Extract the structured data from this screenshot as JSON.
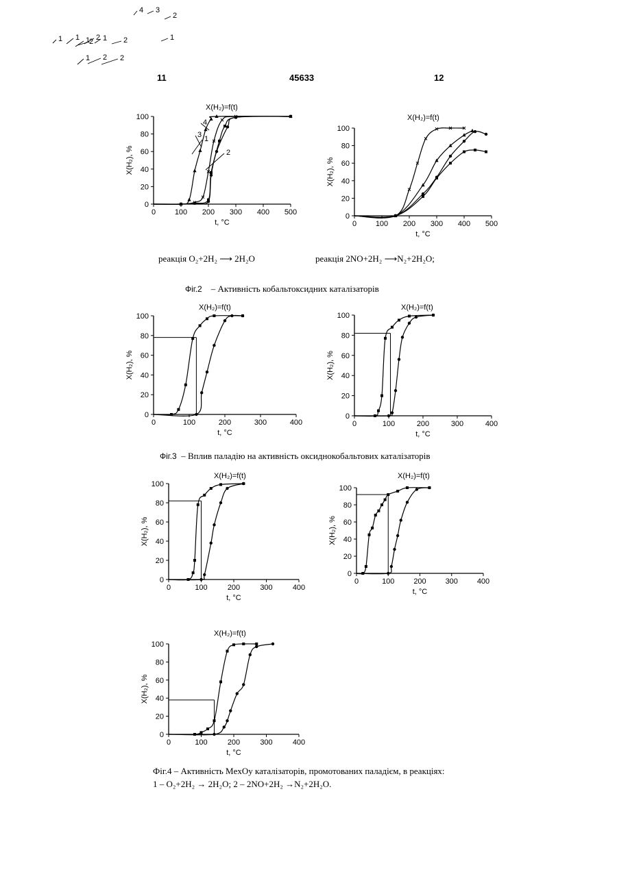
{
  "header": {
    "left": "11",
    "center": "45633",
    "right": "12"
  },
  "captions": {
    "fig2_reaction_left": "реакція O₂+2H₂ ⟶ 2H₂O",
    "fig2_reaction_right": "реакція 2NO+2H₂ ⟶N₂+2H₂O;",
    "fig2_label": "Фіг.2",
    "fig2_text": "– Активність кобальтоксидних каталізаторів",
    "fig3_label": "Фіг.3",
    "fig3_text": "– Вплив паладію на активність оксиднокобальтових каталізаторів",
    "fig4_line1": "Фіг.4 – Активність MeхOy каталізаторів, промотованих паладієм, в реакціях:",
    "fig4_line2": "1 – O₂+2H₂ → 2H₂O; 2 – 2NO+2H₂ →N₂+2H₂O."
  },
  "chart_data": [
    {
      "id": "c2a",
      "type": "line",
      "title": "X(H₂)=f(t)",
      "xlabel": "t, °C",
      "ylabel": "X(H₂), %",
      "xlim": [
        0,
        500
      ],
      "ylim": [
        0,
        100
      ],
      "xticks": [
        0,
        100,
        200,
        300,
        400,
        500
      ],
      "yticks": [
        0,
        20,
        40,
        60,
        80,
        100
      ],
      "series": [
        {
          "name": "1",
          "x": [
            0,
            100,
            150,
            200,
            210,
            240,
            260,
            300,
            500
          ],
          "y": [
            0,
            0,
            1,
            5,
            36,
            72,
            89,
            99,
            100
          ]
        },
        {
          "name": "2",
          "x": [
            0,
            100,
            150,
            200,
            210,
            230,
            270,
            300,
            500
          ],
          "y": [
            0,
            0,
            1,
            3,
            33,
            60,
            88,
            99,
            100
          ]
        },
        {
          "name": "3",
          "x": [
            0,
            100,
            130,
            150,
            170,
            190,
            210,
            230,
            500
          ],
          "y": [
            0,
            0,
            5,
            38,
            61,
            85,
            97,
            100,
            100
          ]
        },
        {
          "name": "4",
          "x": [
            0,
            100,
            150,
            180,
            200,
            220,
            250,
            300,
            500
          ],
          "y": [
            0,
            0,
            2,
            8,
            37,
            72,
            96,
            100,
            100
          ]
        }
      ]
    },
    {
      "id": "c2b",
      "type": "line",
      "title": "X(H₂)=f(t)",
      "xlabel": "t, °C",
      "ylabel": "X(H₂), %",
      "xlim": [
        0,
        500
      ],
      "ylim": [
        0,
        100
      ],
      "xticks": [
        0,
        100,
        200,
        300,
        400,
        500
      ],
      "yticks": [
        0,
        20,
        40,
        60,
        80,
        100
      ],
      "series": [
        {
          "name": "1",
          "x": [
            0,
            150,
            250,
            300,
            350,
            400,
            440,
            480
          ],
          "y": [
            0,
            0,
            22,
            43,
            60,
            73,
            75,
            73
          ]
        },
        {
          "name": "2",
          "x": [
            0,
            150,
            250,
            300,
            350,
            400,
            440,
            480
          ],
          "y": [
            0,
            0,
            25,
            44,
            68,
            85,
            96,
            93
          ]
        },
        {
          "name": "3",
          "x": [
            0,
            150,
            250,
            300,
            350,
            400,
            430
          ],
          "y": [
            0,
            0,
            35,
            63,
            80,
            92,
            97
          ]
        },
        {
          "name": "4",
          "x": [
            0,
            150,
            200,
            230,
            260,
            300,
            350,
            400
          ],
          "y": [
            0,
            0,
            30,
            60,
            88,
            99,
            100,
            100
          ]
        }
      ]
    },
    {
      "id": "c3a",
      "type": "line",
      "title": "X(H₂)=f(t)",
      "xlabel": "t, °C",
      "ylabel": "X(H₂), %",
      "xlim": [
        0,
        400
      ],
      "ylim": [
        0,
        100
      ],
      "xticks": [
        0,
        100,
        200,
        300,
        400
      ],
      "yticks": [
        0,
        20,
        40,
        60,
        80,
        100
      ],
      "series": [
        {
          "name": "1",
          "x": [
            0,
            50,
            70,
            90,
            110,
            130,
            150,
            170,
            250
          ],
          "y": [
            0,
            0,
            5,
            30,
            77,
            90,
            97,
            100,
            100
          ]
        },
        {
          "name": "2",
          "x": [
            0,
            120,
            135,
            150,
            170,
            200,
            220,
            250
          ],
          "y": [
            0,
            0,
            22,
            43,
            70,
            95,
            100,
            100
          ]
        }
      ],
      "reference": {
        "x": 120,
        "y": 78
      }
    },
    {
      "id": "c3b",
      "type": "line",
      "title": "X(H₂)=f(t)",
      "xlabel": "t, °C",
      "ylabel": "X(H₂), %",
      "xlim": [
        0,
        400
      ],
      "ylim": [
        0,
        100
      ],
      "xticks": [
        0,
        100,
        200,
        300,
        400
      ],
      "yticks": [
        0,
        20,
        40,
        60,
        80,
        100
      ],
      "series": [
        {
          "name": "1",
          "x": [
            0,
            60,
            70,
            80,
            90,
            110,
            130,
            160,
            230
          ],
          "y": [
            0,
            0,
            5,
            20,
            77,
            88,
            95,
            99,
            100
          ]
        },
        {
          "name": "2",
          "x": [
            0,
            100,
            110,
            120,
            130,
            140,
            160,
            180,
            230
          ],
          "y": [
            0,
            0,
            3,
            25,
            56,
            78,
            92,
            98,
            100
          ]
        }
      ],
      "reference": {
        "x": 105,
        "y": 82
      }
    },
    {
      "id": "c4a",
      "type": "line",
      "title": "X(H₂)=f(t)",
      "xlabel": "t, °C",
      "ylabel": "X(H₂), %",
      "xlim": [
        0,
        400
      ],
      "ylim": [
        0,
        100
      ],
      "xticks": [
        0,
        100,
        200,
        300,
        400
      ],
      "yticks": [
        0,
        20,
        40,
        60,
        80,
        100
      ],
      "series": [
        {
          "name": "1",
          "x": [
            0,
            60,
            75,
            80,
            90,
            110,
            130,
            160,
            230
          ],
          "y": [
            0,
            0,
            7,
            20,
            78,
            88,
            95,
            99,
            100
          ]
        },
        {
          "name": "2",
          "x": [
            0,
            100,
            110,
            130,
            140,
            160,
            180,
            230
          ],
          "y": [
            0,
            0,
            5,
            38,
            57,
            80,
            95,
            100
          ]
        }
      ],
      "reference": {
        "x": 100,
        "y": 82
      }
    },
    {
      "id": "c4b",
      "type": "line",
      "title": "X(H₂)=f(t)",
      "xlabel": "t, °C",
      "ylabel": "X(H₂), %",
      "xlim": [
        0,
        400
      ],
      "ylim": [
        0,
        100
      ],
      "xticks": [
        0,
        100,
        200,
        300,
        400
      ],
      "yticks": [
        0,
        20,
        40,
        60,
        80,
        100
      ],
      "series": [
        {
          "name": "1",
          "x": [
            0,
            20,
            30,
            40,
            50,
            60,
            70,
            80,
            90,
            100,
            130,
            160,
            230
          ],
          "y": [
            0,
            0,
            8,
            45,
            53,
            68,
            73,
            80,
            86,
            92,
            96,
            100,
            100
          ]
        },
        {
          "name": "2",
          "x": [
            0,
            100,
            110,
            120,
            130,
            140,
            160,
            190,
            230
          ],
          "y": [
            0,
            0,
            8,
            28,
            44,
            62,
            83,
            98,
            100
          ]
        }
      ],
      "reference": {
        "x": 100,
        "y": 92
      }
    },
    {
      "id": "c4c",
      "type": "line",
      "title": "X(H₂)=f(t)",
      "xlabel": "t, °C",
      "ylabel": "X(H₂), %",
      "xlim": [
        0,
        400
      ],
      "ylim": [
        0,
        100
      ],
      "xticks": [
        0,
        100,
        200,
        300,
        400
      ],
      "yticks": [
        0,
        20,
        40,
        60,
        80,
        100
      ],
      "series": [
        {
          "name": "1",
          "x": [
            0,
            80,
            100,
            120,
            140,
            160,
            180,
            200,
            230,
            270
          ],
          "y": [
            0,
            0,
            2,
            6,
            15,
            58,
            92,
            99,
            100,
            100
          ]
        },
        {
          "name": "2",
          "x": [
            0,
            140,
            170,
            180,
            190,
            210,
            230,
            250,
            270,
            320
          ],
          "y": [
            0,
            0,
            8,
            15,
            26,
            45,
            55,
            88,
            97,
            100
          ]
        }
      ],
      "reference": {
        "x": 140,
        "y": 38
      }
    }
  ]
}
